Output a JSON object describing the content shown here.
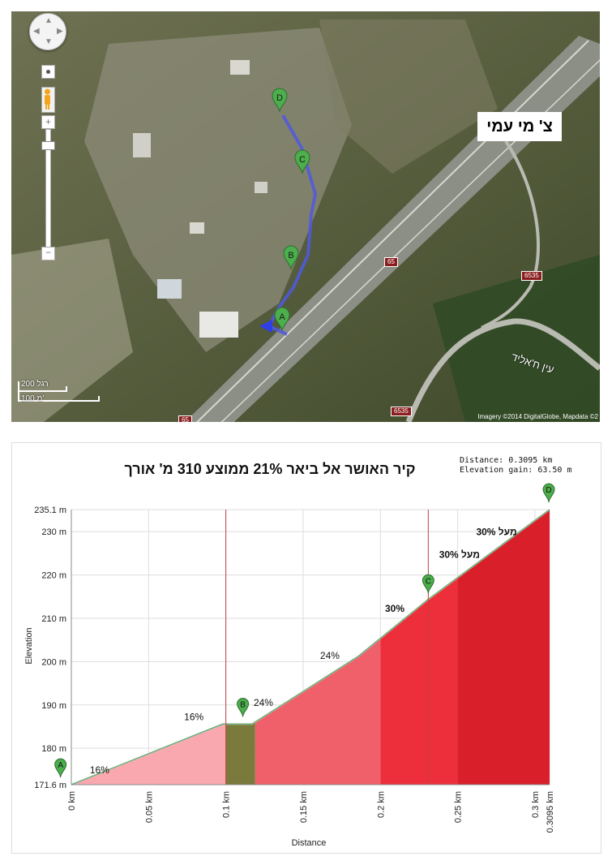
{
  "map": {
    "place_label": "צ' מי עמי",
    "road_names": {
      "road_65": "65",
      "road_6535_a": "6535",
      "road_6535_b": "6535",
      "road_65_bottom": "65",
      "street": "עין ח'אליד"
    },
    "scale": {
      "metric": "100 מ'",
      "imperial": "200 רגל"
    },
    "imagery": "Imagery ©2014 DigitalGlobe, Mapdata ©2"
  },
  "chart_data": {
    "type": "area",
    "title": "קיר האושר  אל ביאר  21% ממוצע 310 מ' אורך",
    "stats": {
      "distance": "Distance: 0.3095 km",
      "gain": "Elevation gain: 63.50 m"
    },
    "xlabel": "Distance",
    "ylabel": "Elevation",
    "xlim": [
      0,
      0.3095
    ],
    "ylim": [
      171.6,
      235.1
    ],
    "x_ticks": [
      {
        "value": 0,
        "label": "0 km"
      },
      {
        "value": 0.05,
        "label": "0.05 km"
      },
      {
        "value": 0.1,
        "label": "0.1 km"
      },
      {
        "value": 0.15,
        "label": "0.15 km"
      },
      {
        "value": 0.2,
        "label": "0.2 km"
      },
      {
        "value": 0.25,
        "label": "0.25 km"
      },
      {
        "value": 0.3,
        "label": "0.3 km"
      },
      {
        "value": 0.3095,
        "label": "0.3095 km"
      }
    ],
    "y_ticks": [
      {
        "value": 171.6,
        "label": "171.6 m"
      },
      {
        "value": 180,
        "label": "180 m"
      },
      {
        "value": 190,
        "label": "190 m"
      },
      {
        "value": 200,
        "label": "200 m"
      },
      {
        "value": 210,
        "label": "210 m"
      },
      {
        "value": 220,
        "label": "220 m"
      },
      {
        "value": 230,
        "label": "230 m"
      },
      {
        "value": 235.1,
        "label": "235.1 m"
      }
    ],
    "grid": true,
    "profile": [
      {
        "x": 0,
        "y": 171.6
      },
      {
        "x": 0.098,
        "y": 185.6
      },
      {
        "x": 0.117,
        "y": 185.6
      },
      {
        "x": 0.186,
        "y": 201.3
      },
      {
        "x": 0.231,
        "y": 214.4
      },
      {
        "x": 0.3095,
        "y": 235.1
      }
    ],
    "segments": [
      {
        "x0": 0,
        "x1": 0.1,
        "grade": "16%",
        "color": "#f8a8ae"
      },
      {
        "x0": 0.1,
        "x1": 0.119,
        "grade": "",
        "color": "#7a7a3c"
      },
      {
        "x0": 0.119,
        "x1": 0.2,
        "grade": "24%",
        "color": "#f0606a"
      },
      {
        "x0": 0.2,
        "x1": 0.25,
        "grade": "30%",
        "color": "#ec2f3a"
      },
      {
        "x0": 0.25,
        "x1": 0.3095,
        "grade": "30%",
        "color": "#d81f2a"
      }
    ],
    "vlines": [
      0.1,
      0.231
    ],
    "annotations": [
      {
        "text": "16%",
        "x": 0.012,
        "y": 174.2
      },
      {
        "text": "16%",
        "x": 0.073,
        "y": 186.5
      },
      {
        "text": "24%",
        "x": 0.118,
        "y": 189.8
      },
      {
        "text": "24%",
        "x": 0.161,
        "y": 200.6
      },
      {
        "text": "30%",
        "x": 0.203,
        "y": 211.5
      },
      {
        "text": "מעל 30%",
        "x": 0.238,
        "y": 224.0
      },
      {
        "text": "מעל 30%",
        "x": 0.262,
        "y": 229.2
      }
    ],
    "markers": [
      {
        "label": "A",
        "x": -0.007,
        "y": 174.0
      },
      {
        "label": "B",
        "x": 0.111,
        "y": 188.0
      },
      {
        "label": "C",
        "x": 0.231,
        "y": 216.5
      },
      {
        "label": "D",
        "x": 0.309,
        "y": 237.5
      }
    ],
    "colors": {
      "marker": "#4cae4c",
      "line": "#3fa0d8",
      "grid": "#dddddd",
      "vline": "#c04040"
    }
  }
}
